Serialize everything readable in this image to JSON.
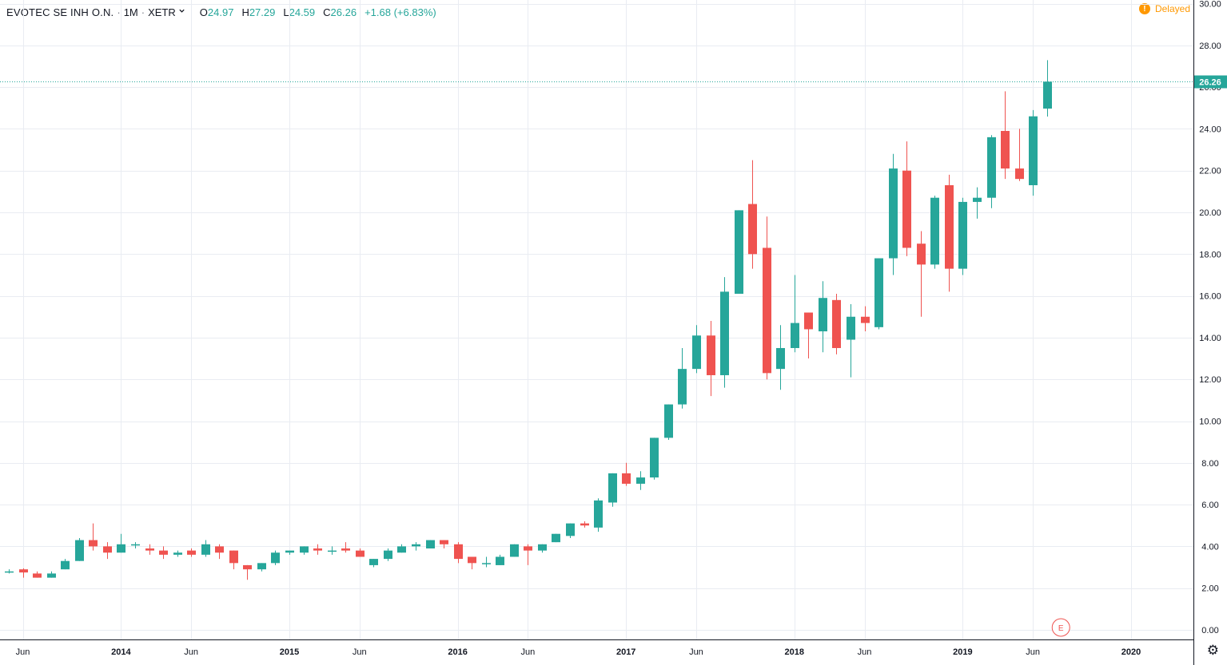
{
  "header": {
    "symbol": "EVOTEC SE INH O.N.",
    "interval": "1M",
    "exchange": "XETR",
    "sep": "·",
    "open_label": "O",
    "open": "24.97",
    "high_label": "H",
    "high": "27.29",
    "low_label": "L",
    "low": "24.59",
    "close_label": "C",
    "close": "26.26",
    "change": "+1.68 (+6.83%)"
  },
  "status": {
    "delayed_icon": "!",
    "delayed_label": "Delayed"
  },
  "settings_icon": "⚙",
  "colors": {
    "up": "#26a69a",
    "down": "#ef5350",
    "grid": "#e9ecf2",
    "axis": "#131722",
    "price_line": "#26a69a"
  },
  "chart_data": {
    "type": "candlestick",
    "title": "EVOTEC SE INH O.N.",
    "interval": "1M",
    "y_range": [
      0,
      30
    ],
    "y_ticks": [
      "0.00",
      "2.00",
      "4.00",
      "6.00",
      "8.00",
      "10.00",
      "12.00",
      "14.00",
      "16.00",
      "18.00",
      "20.00",
      "22.00",
      "24.00",
      "26.00",
      "28.00",
      "30.00"
    ],
    "last_price": "26.26",
    "x_ticks": [
      {
        "label": "Jun",
        "idx": 1
      },
      {
        "label": "2014",
        "idx": 8
      },
      {
        "label": "Jun",
        "idx": 13
      },
      {
        "label": "2015",
        "idx": 20
      },
      {
        "label": "Jun",
        "idx": 25
      },
      {
        "label": "2016",
        "idx": 32
      },
      {
        "label": "Jun",
        "idx": 37
      },
      {
        "label": "2017",
        "idx": 44
      },
      {
        "label": "Jun",
        "idx": 49
      },
      {
        "label": "2018",
        "idx": 56
      },
      {
        "label": "Jun",
        "idx": 61
      },
      {
        "label": "2019",
        "idx": 68
      },
      {
        "label": "Jun",
        "idx": 73
      },
      {
        "label": "2020",
        "idx": 80
      }
    ],
    "earnings_marker": {
      "label": "E",
      "idx": 75
    },
    "grid": true,
    "candles": [
      [
        2.8,
        2.9,
        2.7,
        2.8
      ],
      [
        2.9,
        2.95,
        2.5,
        2.75
      ],
      [
        2.7,
        2.8,
        2.5,
        2.5
      ],
      [
        2.5,
        2.8,
        2.5,
        2.7
      ],
      [
        2.9,
        3.4,
        2.9,
        3.3
      ],
      [
        3.3,
        4.4,
        3.3,
        4.3
      ],
      [
        4.3,
        5.1,
        3.8,
        4.0
      ],
      [
        4.0,
        4.2,
        3.4,
        3.7
      ],
      [
        3.7,
        4.6,
        3.7,
        4.1
      ],
      [
        4.1,
        4.2,
        3.9,
        4.1
      ],
      [
        3.9,
        4.1,
        3.6,
        3.8
      ],
      [
        3.8,
        4.0,
        3.4,
        3.6
      ],
      [
        3.6,
        3.8,
        3.5,
        3.7
      ],
      [
        3.8,
        3.9,
        3.5,
        3.6
      ],
      [
        3.6,
        4.3,
        3.5,
        4.1
      ],
      [
        4.0,
        4.1,
        3.4,
        3.7
      ],
      [
        3.8,
        3.8,
        2.9,
        3.2
      ],
      [
        3.1,
        3.1,
        2.4,
        2.9
      ],
      [
        2.9,
        3.2,
        2.8,
        3.2
      ],
      [
        3.2,
        3.8,
        3.1,
        3.7
      ],
      [
        3.7,
        3.8,
        3.6,
        3.8
      ],
      [
        3.7,
        4.0,
        3.6,
        4.0
      ],
      [
        3.9,
        4.1,
        3.6,
        3.8
      ],
      [
        3.8,
        4.0,
        3.6,
        3.8
      ],
      [
        3.9,
        4.2,
        3.7,
        3.8
      ],
      [
        3.8,
        3.9,
        3.5,
        3.5
      ],
      [
        3.1,
        3.4,
        3.0,
        3.4
      ],
      [
        3.4,
        3.9,
        3.3,
        3.8
      ],
      [
        3.7,
        4.1,
        3.7,
        4.0
      ],
      [
        4.0,
        4.2,
        3.8,
        4.1
      ],
      [
        3.9,
        4.3,
        3.9,
        4.3
      ],
      [
        4.3,
        4.3,
        3.9,
        4.1
      ],
      [
        4.1,
        4.2,
        3.2,
        3.4
      ],
      [
        3.5,
        3.5,
        2.9,
        3.2
      ],
      [
        3.2,
        3.5,
        3.0,
        3.2
      ],
      [
        3.1,
        3.6,
        3.1,
        3.5
      ],
      [
        3.5,
        4.1,
        3.5,
        4.1
      ],
      [
        4.0,
        4.1,
        3.1,
        3.8
      ],
      [
        3.8,
        4.1,
        3.7,
        4.1
      ],
      [
        4.2,
        4.6,
        4.2,
        4.6
      ],
      [
        4.5,
        5.1,
        4.4,
        5.1
      ],
      [
        5.1,
        5.2,
        4.9,
        5.0
      ],
      [
        4.9,
        6.3,
        4.7,
        6.2
      ],
      [
        6.1,
        7.5,
        5.9,
        7.5
      ],
      [
        7.5,
        8.0,
        6.9,
        7.0
      ],
      [
        7.0,
        7.6,
        6.7,
        7.3
      ],
      [
        7.3,
        9.2,
        7.2,
        9.2
      ],
      [
        9.2,
        10.8,
        9.1,
        10.8
      ],
      [
        10.8,
        13.5,
        10.6,
        12.5
      ],
      [
        12.5,
        14.6,
        12.3,
        14.1
      ],
      [
        14.1,
        14.8,
        11.2,
        12.2
      ],
      [
        12.2,
        16.9,
        11.6,
        16.2
      ],
      [
        16.1,
        20.1,
        16.1,
        20.1
      ],
      [
        20.4,
        22.5,
        17.3,
        18.0
      ],
      [
        18.3,
        19.8,
        12.0,
        12.3
      ],
      [
        12.5,
        14.6,
        11.5,
        13.5
      ],
      [
        13.5,
        17.0,
        13.3,
        14.7
      ],
      [
        15.2,
        15.2,
        13.0,
        14.4
      ],
      [
        14.3,
        16.7,
        13.3,
        15.9
      ],
      [
        15.8,
        16.1,
        13.2,
        13.5
      ],
      [
        13.9,
        15.6,
        12.1,
        15.0
      ],
      [
        15.0,
        15.5,
        14.3,
        14.7
      ],
      [
        14.5,
        17.8,
        14.4,
        17.8
      ],
      [
        17.8,
        22.8,
        17.0,
        22.1
      ],
      [
        22.0,
        23.4,
        17.9,
        18.3
      ],
      [
        18.5,
        19.1,
        15.0,
        17.5
      ],
      [
        17.5,
        20.8,
        17.3,
        20.7
      ],
      [
        21.3,
        21.8,
        16.2,
        17.3
      ],
      [
        17.3,
        20.7,
        17.0,
        20.5
      ],
      [
        20.5,
        21.2,
        19.7,
        20.7
      ],
      [
        20.7,
        23.7,
        20.2,
        23.6
      ],
      [
        23.9,
        25.8,
        21.6,
        22.1
      ],
      [
        22.1,
        24.0,
        21.5,
        21.6
      ],
      [
        21.3,
        24.9,
        20.8,
        24.6
      ],
      [
        24.97,
        27.29,
        24.59,
        26.26
      ]
    ]
  }
}
